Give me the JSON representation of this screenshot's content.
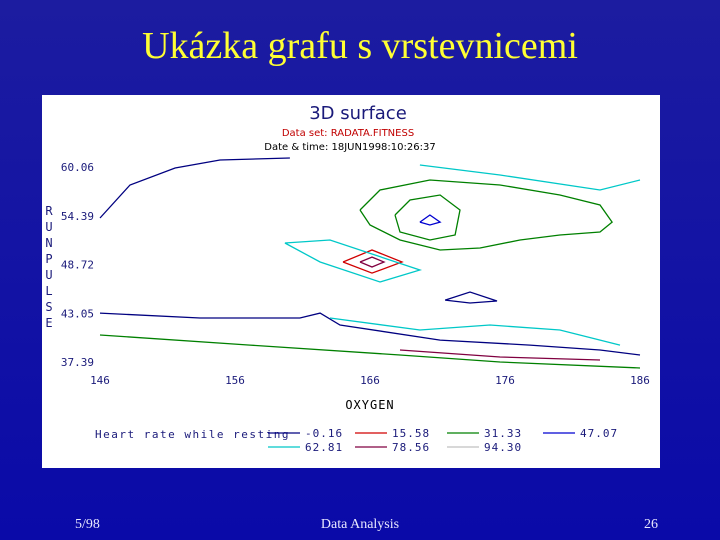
{
  "title": "Ukázka grafu s vrstevnicemi",
  "footer": {
    "left": "5/98",
    "center": "Data Analysis",
    "right": "26"
  },
  "chart_data": {
    "type": "contour",
    "title": "3D surface",
    "subtitle": "Data set: RADATA.FITNESS",
    "note": "Date & time: 18JUN1998:10:26:37",
    "xlabel": "OXYGEN",
    "ylabel": "RUNPULSE",
    "legend_title": "Heart rate while resting",
    "xlim": [
      146,
      186
    ],
    "ylim": [
      37.39,
      60.06
    ],
    "xticks": [
      146,
      156,
      166,
      176,
      186
    ],
    "yticks": [
      60.06,
      54.39,
      48.72,
      43.05,
      37.39
    ],
    "series": [
      {
        "name": "-0.16",
        "color": "#000080",
        "lines": [
          {
            "x": [
              146,
              148.22,
              151.56,
              154.89,
              160.07
            ],
            "y": [
              54.13,
              57.97,
              59.94,
              60.87,
              61.11
            ]
          },
          {
            "x": [
              171.56,
              173.41,
              175.41,
              173.41,
              171.56
            ],
            "y": [
              44.59,
              45.53,
              44.48,
              44.25,
              44.59
            ]
          },
          {
            "x": [
              146,
              153.41,
              160.81,
              162.3,
              163.78,
              171.19,
              177.85,
              183.04,
              186
            ],
            "y": [
              43.08,
              42.5,
              42.5,
              43.08,
              41.69,
              39.94,
              39.36,
              38.78,
              38.2
            ]
          }
        ]
      },
      {
        "name": "15.58",
        "color": "#d00000",
        "lines": [
          {
            "x": [
              164.0,
              166.15,
              168.37,
              166.15,
              164.0
            ],
            "y": [
              49.01,
              50.41,
              49.01,
              47.73,
              49.01
            ]
          }
        ]
      },
      {
        "name": "31.33",
        "color": "#008000",
        "lines": [
          {
            "x": [
              165.26,
              166.74,
              170.44,
              175.63,
              180.07,
              183.04,
              183.93,
              183.04,
              180.07,
              177.11,
              174.15,
              171.19,
              168.22,
              166,
              165.26
            ],
            "y": [
              55.06,
              57.39,
              58.55,
              57.97,
              56.8,
              55.64,
              53.66,
              52.5,
              52.15,
              51.57,
              50.64,
              50.41,
              51.57,
              53.32,
              55.06
            ]
          },
          {
            "x": [
              167.85,
              168.96,
              171.19,
              172.67,
              172.3,
              170.44,
              168.22,
              167.85
            ],
            "y": [
              54.48,
              56.22,
              56.8,
              55.06,
              52.15,
              51.57,
              52.5,
              54.48
            ]
          },
          {
            "x": [
              146,
              157.11,
              168.22,
              175.63,
              186
            ],
            "y": [
              40.53,
              39.36,
              38.2,
              37.39,
              36.69
            ]
          }
        ]
      },
      {
        "name": "47.07",
        "color": "#0000d0",
        "lines": [
          {
            "x": [
              169.7,
              170.44,
              171.19,
              170.44,
              169.7
            ],
            "y": [
              53.66,
              54.48,
              53.66,
              53.32,
              53.66
            ]
          }
        ]
      },
      {
        "name": "62.81",
        "color": "#00c8c8",
        "lines": [
          {
            "x": [
              159.7,
              163.04,
              166.37,
              169.7,
              166.74,
              162.3,
              159.7
            ],
            "y": [
              51.22,
              51.57,
              49.83,
              48.08,
              46.69,
              49.01,
              51.22
            ]
          },
          {
            "x": [
              163.04,
              169.7,
              174.89,
              180.07,
              184.52
            ],
            "y": [
              42.5,
              41.11,
              41.69,
              41.11,
              39.36
            ]
          },
          {
            "x": [
              169.7,
              175.63,
              183.04,
              186
            ],
            "y": [
              60.29,
              59.13,
              57.39,
              58.55
            ]
          }
        ]
      },
      {
        "name": "78.56",
        "color": "#800040",
        "lines": [
          {
            "x": [
              165.26,
              166.15,
              167.04,
              166.15,
              165.26
            ],
            "y": [
              49.01,
              49.59,
              49.01,
              48.43,
              49.01
            ]
          },
          {
            "x": [
              168.22,
              175.63,
              183.04
            ],
            "y": [
              38.78,
              37.97,
              37.62
            ]
          }
        ]
      },
      {
        "name": "94.30",
        "color": "#c0c0c0",
        "lines": []
      }
    ]
  }
}
